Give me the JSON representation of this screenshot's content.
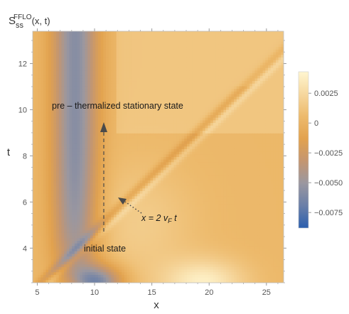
{
  "chart_data": {
    "type": "heatmap",
    "title_main": "S",
    "title_sub": "ss",
    "title_sup": "FFLO",
    "title_args": "(x, t)",
    "xlabel": "x",
    "ylabel": "t",
    "xlim": [
      4.6,
      26.5
    ],
    "ylim": [
      2.5,
      13.4
    ],
    "xticks": [
      5,
      10,
      15,
      20,
      25
    ],
    "yticks": [
      4,
      6,
      8,
      10,
      12
    ],
    "colorbar": {
      "range": [
        -0.0088,
        0.0043
      ],
      "ticks": [
        0.0025,
        0,
        -0.0025,
        -0.005,
        -0.0075
      ],
      "tick_labels": [
        "0.0025",
        "0",
        "−0.0025",
        "−0.0050",
        "−0.0075"
      ],
      "stops": [
        "#2b5fae",
        "#6a7fa8",
        "#9a97a0",
        "#c49670",
        "#e2a24e",
        "#edba6c",
        "#f6d79e",
        "#fff6d0"
      ]
    },
    "annotations": {
      "stationary_label": "pre – thermalized stationary state",
      "initial_label": "initial state",
      "lightcone_label_pre": "x = 2 ",
      "lightcone_label_v": "v",
      "lightcone_label_sub": "F",
      "lightcone_label_post": " t"
    }
  }
}
